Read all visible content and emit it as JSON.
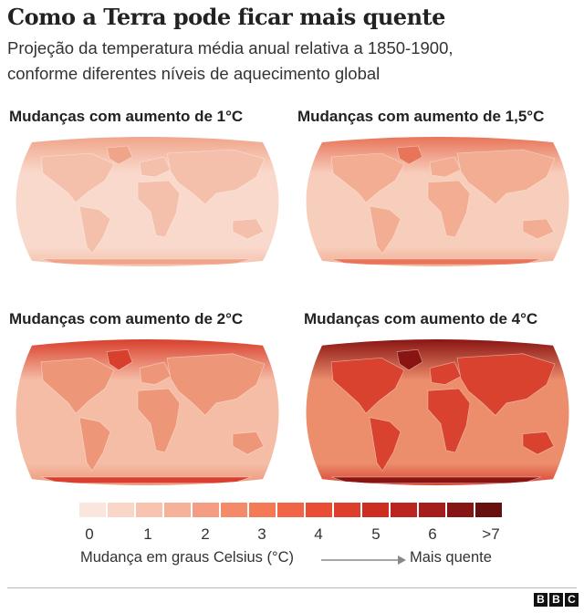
{
  "title": "Como a Terra pode ficar mais quente",
  "subtitle": [
    "Projeção da temperatura média anual relativa a 1850-1900,",
    "conforme diferentes níveis de aquecimento global"
  ],
  "maps": [
    {
      "label": "Mudanças com aumento de 1°C",
      "ocean": "#f9d9cc",
      "land": "#f5c0ab",
      "arctic": "#f0a58a"
    },
    {
      "label": "Mudanças com aumento de 1,5°C",
      "ocean": "#f7cdbb",
      "land": "#f2ad93",
      "arctic": "#e8755a"
    },
    {
      "label": "Mudanças com aumento de 2°C",
      "ocean": "#f5bda6",
      "land": "#ee9678",
      "arctic": "#d8402d"
    },
    {
      "label": "Mudanças com aumento de 4°C",
      "ocean": "#ec8d6c",
      "land": "#d8422f",
      "arctic": "#8a1412"
    }
  ],
  "legend": {
    "colors": [
      "#fbe6dd",
      "#f9d6c8",
      "#f8c4b0",
      "#f6b199",
      "#f59d82",
      "#f58a6b",
      "#f47a56",
      "#f06546",
      "#e84e36",
      "#dd3f2c",
      "#cc2e22",
      "#bb2520",
      "#a61e1b",
      "#861615",
      "#661010"
    ],
    "ticks": [
      "0",
      "1",
      "2",
      "3",
      "4",
      "5",
      "6",
      ">7"
    ],
    "axis_label": "Mudança em graus Celsius (°C)",
    "arrow_label": "Mais quente"
  },
  "logo": [
    "B",
    "B",
    "C"
  ]
}
